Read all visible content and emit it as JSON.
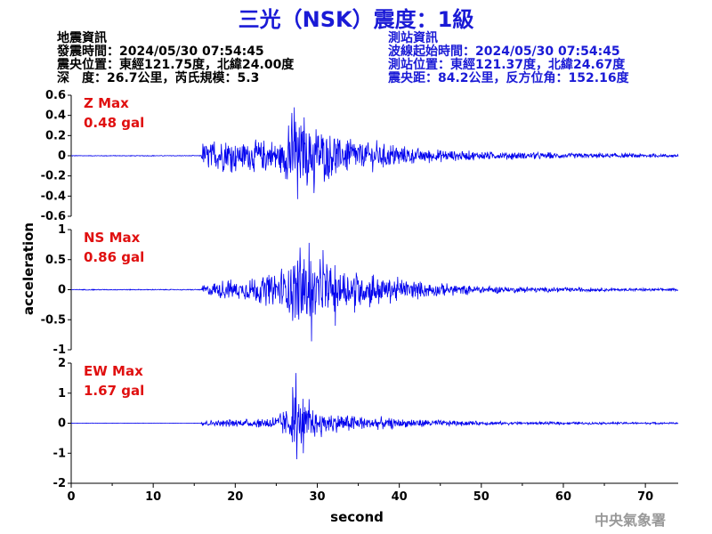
{
  "title": "三光（NSK）震度：1級",
  "quake_info": {
    "heading": "地震資訊",
    "origin_time": "發震時間：2024/05/30 07:54:45",
    "epicenter": "震央位置：東經121.75度，北緯24.00度",
    "depth_magnitude": "深　度：26.7公里，芮氏規模：5.3"
  },
  "station_info": {
    "heading": "測站資訊",
    "wave_start": "波線起始時間：2024/05/30 07:54:45",
    "location": "測站位置：東經121.37度，北緯24.67度",
    "distance": "震央距：84.2公里，反方位角：152.16度"
  },
  "credit": "中央氣象署",
  "colors": {
    "trace": "#0000ee",
    "title": "#1a1ad6",
    "max_label": "#e01010"
  },
  "chart_data": {
    "type": "line",
    "xlabel": "second",
    "ylabel": "acceleration",
    "xlim": [
      0,
      74
    ],
    "xticks": [
      0,
      10,
      20,
      30,
      40,
      50,
      60,
      70
    ],
    "panels": [
      {
        "component": "Z",
        "max_label": "Z Max",
        "max_value": "0.48 gal",
        "ylim": [
          -0.6,
          0.6
        ],
        "yticks": [
          0.6,
          0.4,
          0.2,
          0,
          -0.2,
          -0.4,
          -0.6
        ],
        "ytick_labels": [
          "0.6",
          "0.4",
          "0.2",
          "0",
          "-0.2",
          "-0.4",
          "-0.6"
        ],
        "envelope": {
          "t": [
            0,
            15.8,
            16,
            18,
            22,
            26,
            27,
            28,
            29,
            30,
            32,
            35,
            38,
            42,
            46,
            50,
            55,
            60,
            65,
            70,
            74
          ],
          "a": [
            0.004,
            0.004,
            0.13,
            0.17,
            0.15,
            0.2,
            0.45,
            0.34,
            0.31,
            0.3,
            0.22,
            0.17,
            0.13,
            0.08,
            0.06,
            0.045,
            0.035,
            0.03,
            0.025,
            0.02,
            0.018
          ]
        },
        "peaks": [
          [
            27.2,
            0.48
          ],
          [
            27.6,
            -0.43
          ],
          [
            28.4,
            0.38
          ],
          [
            29.6,
            -0.37
          ],
          [
            26.5,
            0.3
          ]
        ]
      },
      {
        "component": "NS",
        "max_label": "NS Max",
        "max_value": "0.86 gal",
        "ylim": [
          -1,
          1
        ],
        "yticks": [
          1,
          0.5,
          0,
          -0.5,
          -1
        ],
        "ytick_labels": [
          "1",
          "0.5",
          "0",
          "-0.5",
          "-1"
        ],
        "envelope": {
          "t": [
            0,
            15.8,
            16,
            18,
            22,
            25,
            27,
            28,
            29,
            30,
            32,
            35,
            38,
            42,
            46,
            50,
            55,
            60,
            65,
            70,
            74
          ],
          "a": [
            0.008,
            0.008,
            0.1,
            0.15,
            0.2,
            0.3,
            0.55,
            0.6,
            0.55,
            0.5,
            0.4,
            0.35,
            0.26,
            0.15,
            0.1,
            0.07,
            0.05,
            0.04,
            0.03,
            0.025,
            0.02
          ]
        },
        "peaks": [
          [
            29.3,
            -0.86
          ],
          [
            29.0,
            0.78
          ],
          [
            27.9,
            0.7
          ],
          [
            30.7,
            0.66
          ],
          [
            32.2,
            -0.6
          ]
        ]
      },
      {
        "component": "EW",
        "max_label": "EW Max",
        "max_value": "1.67 gal",
        "ylim": [
          -2,
          2
        ],
        "yticks": [
          2,
          1,
          0,
          -1,
          -2
        ],
        "ytick_labels": [
          "2",
          "1",
          "0",
          "-1",
          "-2"
        ],
        "envelope": {
          "t": [
            0,
            15.8,
            16,
            18,
            22,
            25,
            26.5,
            27.3,
            28,
            29,
            30,
            32,
            35,
            38,
            42,
            46,
            50,
            55,
            60,
            65,
            70,
            74
          ],
          "a": [
            0.006,
            0.006,
            0.1,
            0.12,
            0.14,
            0.25,
            0.6,
            0.9,
            0.85,
            0.6,
            0.45,
            0.35,
            0.28,
            0.2,
            0.14,
            0.1,
            0.07,
            0.05,
            0.045,
            0.04,
            0.035,
            0.03
          ]
        },
        "peaks": [
          [
            27.4,
            1.67
          ],
          [
            27.5,
            -1.2
          ],
          [
            27.0,
            1.2
          ],
          [
            28.3,
            -1.0
          ],
          [
            29.0,
            0.8
          ]
        ]
      }
    ]
  }
}
